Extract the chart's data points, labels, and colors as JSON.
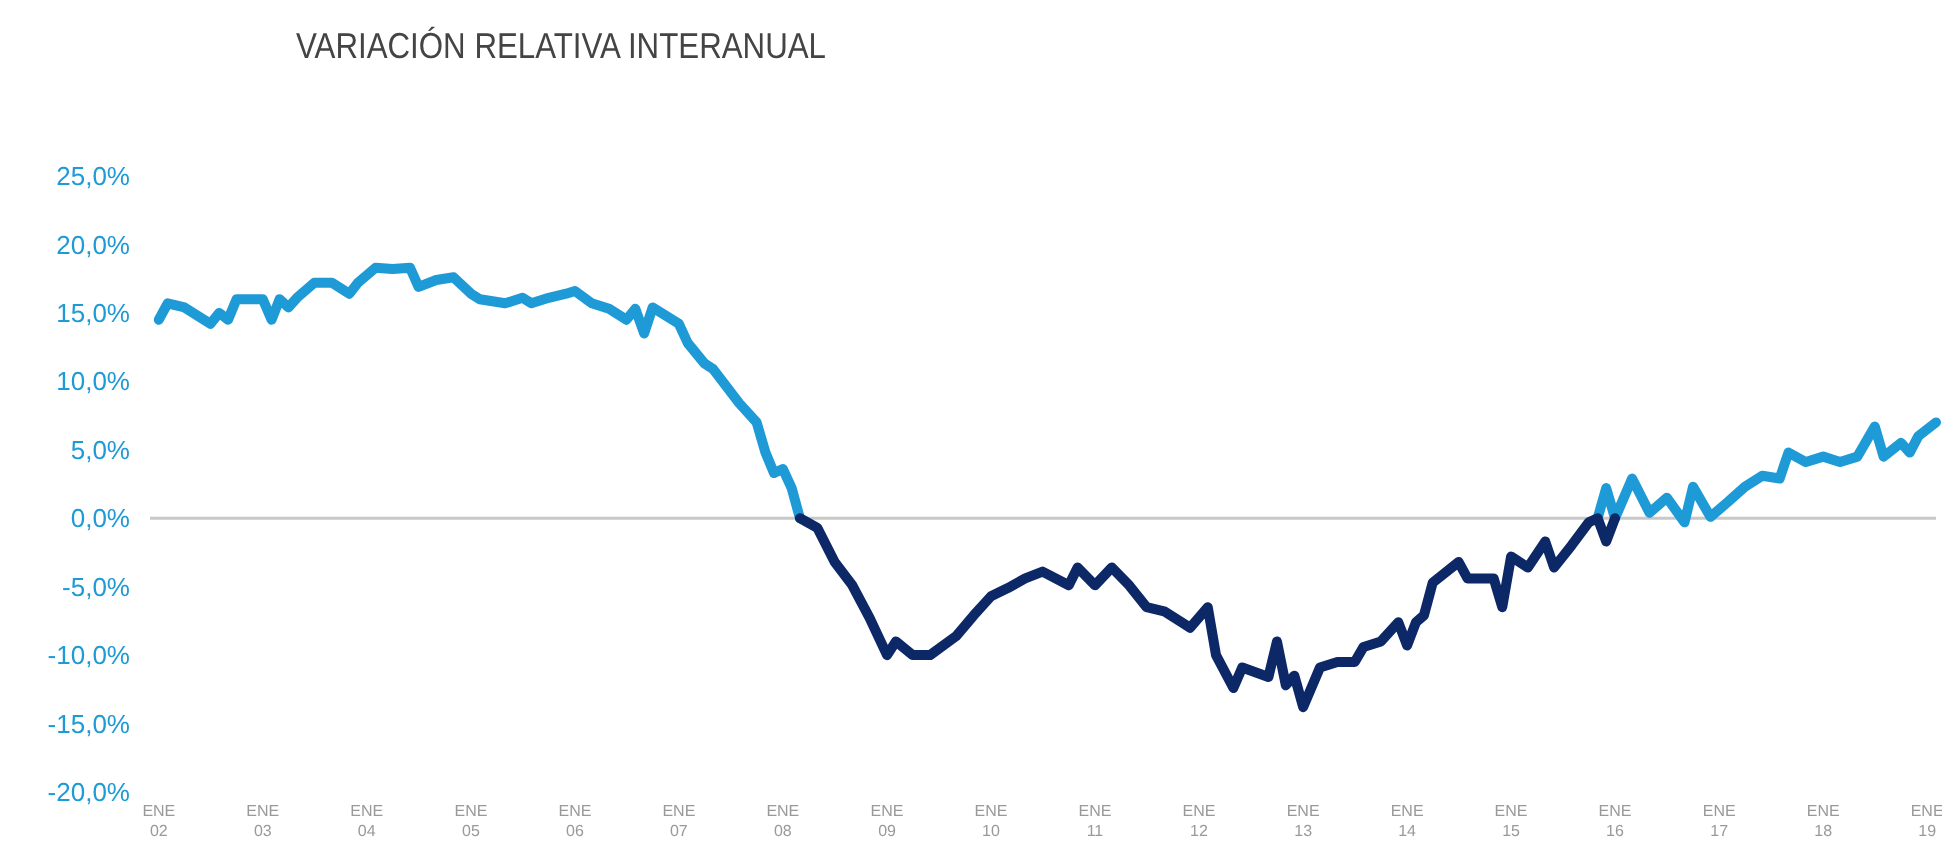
{
  "chart_data": {
    "type": "line",
    "title": "VARIACIÓN RELATIVA INTERANUAL",
    "xlim": [
      "2001-12",
      "2019-02"
    ],
    "xticks": [
      {
        "value": "2002-01",
        "label": "ENE 02"
      },
      {
        "value": "2003-01",
        "label": "ENE 03"
      },
      {
        "value": "2004-01",
        "label": "ENE 04"
      },
      {
        "value": "2005-01",
        "label": "ENE 05"
      },
      {
        "value": "2006-01",
        "label": "ENE 06"
      },
      {
        "value": "2007-01",
        "label": "ENE 07"
      },
      {
        "value": "2008-01",
        "label": "ENE 08"
      },
      {
        "value": "2009-01",
        "label": "ENE 09"
      },
      {
        "value": "2010-01",
        "label": "ENE 10"
      },
      {
        "value": "2011-01",
        "label": "ENE 11"
      },
      {
        "value": "2012-01",
        "label": "ENE 12"
      },
      {
        "value": "2013-01",
        "label": "ENE 13"
      },
      {
        "value": "2014-01",
        "label": "ENE 14"
      },
      {
        "value": "2015-01",
        "label": "ENE 15"
      },
      {
        "value": "2016-01",
        "label": "ENE 16"
      },
      {
        "value": "2017-01",
        "label": "ENE 17"
      },
      {
        "value": "2018-01",
        "label": "ENE 18"
      },
      {
        "value": "2019-01",
        "label": "ENE 19"
      }
    ],
    "ylim": [
      -20,
      25
    ],
    "yticks": [
      {
        "value": -20,
        "label": "-20,0%"
      },
      {
        "value": -15,
        "label": "-15,0%"
      },
      {
        "value": -10,
        "label": "-10,0%"
      },
      {
        "value": -5,
        "label": "-5,0%"
      },
      {
        "value": 0,
        "label": "0,0%"
      },
      {
        "value": 5,
        "label": "5,0%"
      },
      {
        "value": 10,
        "label": "10,0%"
      },
      {
        "value": 15,
        "label": "15,0%"
      },
      {
        "value": 20,
        "label": "20,0%"
      },
      {
        "value": 25,
        "label": "25,0%"
      }
    ],
    "grid": false,
    "marker": "none",
    "line_style": "solid",
    "ref_lines": [
      {
        "axis": "y",
        "value": 0,
        "color": "#c8c8c8"
      }
    ],
    "series": [
      {
        "color": "#1e9ad6",
        "x": [
          "2002-01",
          "2002-02",
          "2002-04",
          "2002-07",
          "2002-08",
          "2002-09",
          "2002-10",
          "2003-01",
          "2003-02",
          "2003-03",
          "2003-04",
          "2003-05",
          "2003-07",
          "2003-09",
          "2003-11",
          "2003-12",
          "2004-02",
          "2004-04",
          "2004-06",
          "2004-07",
          "2004-09",
          "2004-11",
          "2005-01",
          "2005-02",
          "2005-05",
          "2005-07",
          "2005-08",
          "2005-10",
          "2005-12",
          "2006-01",
          "2006-03",
          "2006-05",
          "2006-07",
          "2006-08",
          "2006-09",
          "2006-10",
          "2007-01",
          "2007-02",
          "2007-04",
          "2007-05",
          "2007-08",
          "2007-10",
          "2007-11",
          "2007-12",
          "2008-01",
          "2008-02",
          "2008-03",
          "2015-10",
          "2015-11",
          "2015-12",
          "2016-01",
          "2016-03",
          "2016-05",
          "2016-07",
          "2016-09",
          "2016-10",
          "2016-12",
          "2017-02",
          "2017-04",
          "2017-06",
          "2017-08",
          "2017-09",
          "2017-11",
          "2018-01",
          "2018-03",
          "2018-05",
          "2018-07",
          "2018-08",
          "2018-10",
          "2018-11",
          "2018-12",
          "2019-02"
        ],
        "values": [
          14.5,
          15.7,
          15.4,
          14.2,
          15.0,
          14.5,
          16.0,
          16.0,
          14.5,
          16.0,
          15.4,
          16.1,
          17.2,
          17.2,
          16.4,
          17.2,
          18.3,
          18.2,
          18.3,
          16.9,
          17.4,
          17.6,
          16.4,
          16.0,
          15.7,
          16.1,
          15.7,
          16.1,
          16.4,
          16.6,
          15.7,
          15.3,
          14.5,
          15.3,
          13.5,
          15.4,
          14.2,
          12.8,
          11.3,
          10.9,
          8.4,
          7.0,
          4.8,
          3.3,
          3.6,
          2.2,
          0,
          null,
          0,
          2.2,
          0,
          2.9,
          0.4,
          1.5,
          -0.3,
          2.3,
          0.1,
          1.2,
          2.3,
          3.1,
          2.9,
          4.8,
          4.1,
          4.5,
          4.1,
          4.5,
          6.7,
          4.5,
          5.5,
          4.8,
          6.0,
          7.0
        ]
      },
      {
        "color": "#0c2866",
        "x": [
          "2008-03",
          "2008-05",
          "2008-07",
          "2008-09",
          "2008-11",
          "2009-01",
          "2009-02",
          "2009-04",
          "2009-06",
          "2009-09",
          "2009-11",
          "2010-01",
          "2010-03",
          "2010-05",
          "2010-07",
          "2010-10",
          "2010-11",
          "2011-01",
          "2011-03",
          "2011-05",
          "2011-07",
          "2011-09",
          "2011-11",
          "2011-12",
          "2012-02",
          "2012-03",
          "2012-05",
          "2012-06",
          "2012-09",
          "2012-10",
          "2012-11",
          "2012-12",
          "2013-01",
          "2013-03",
          "2013-05",
          "2013-07",
          "2013-08",
          "2013-10",
          "2013-12",
          "2014-01",
          "2014-02",
          "2014-03",
          "2014-04",
          "2014-07",
          "2014-08",
          "2014-11",
          "2014-12",
          "2015-01",
          "2015-03",
          "2015-05",
          "2015-06",
          "2015-08",
          "2015-10",
          "2015-11",
          "2015-12",
          "2016-01"
        ],
        "values": [
          0,
          -0.7,
          -3.2,
          -4.9,
          -7.3,
          -10.0,
          -9.0,
          -10.0,
          -10.0,
          -8.6,
          -7.1,
          -5.7,
          -5.1,
          -4.4,
          -3.9,
          -4.9,
          -3.6,
          -4.9,
          -3.6,
          -4.9,
          -6.5,
          -6.8,
          -7.6,
          -8.0,
          -6.5,
          -10.0,
          -12.4,
          -10.9,
          -11.6,
          -9.0,
          -12.2,
          -11.5,
          -13.8,
          -10.9,
          -10.5,
          -10.5,
          -9.4,
          -9.0,
          -7.6,
          -9.3,
          -7.6,
          -7.1,
          -4.7,
          -3.2,
          -4.4,
          -4.4,
          -6.5,
          -2.8,
          -3.6,
          -1.7,
          -3.6,
          -2.0,
          -0.3,
          0,
          -1.7,
          0
        ]
      }
    ]
  }
}
